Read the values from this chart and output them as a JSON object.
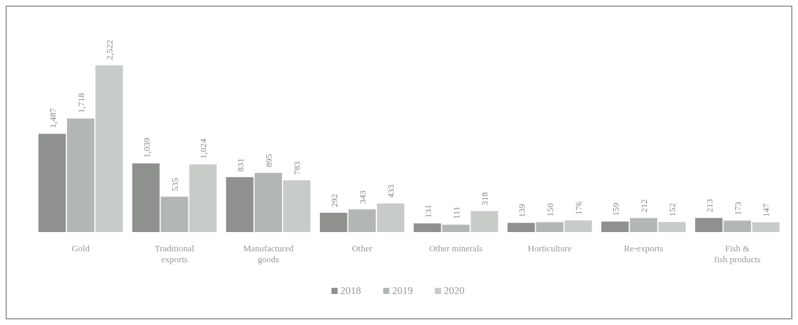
{
  "chart_data": {
    "type": "bar",
    "categories": [
      "Gold",
      "Traditional exports",
      "Manufactured goods",
      "Other",
      "Other minerals",
      "Horticulture",
      "Re-exports",
      "Fish & fish products"
    ],
    "series": [
      {
        "name": "2018",
        "color": "#8e918d",
        "values": [
          1487,
          1039,
          831,
          292,
          131,
          139,
          159,
          213
        ],
        "value_labels": [
          "1,487",
          "1,039",
          "831",
          "292",
          "131",
          "139",
          "159",
          "213"
        ]
      },
      {
        "name": "2019",
        "color": "#b3b7b3",
        "values": [
          1718,
          535,
          895,
          343,
          111,
          150,
          212,
          173
        ],
        "value_labels": [
          "1,718",
          "535",
          "895",
          "343",
          "111",
          "150",
          "212",
          "173"
        ]
      },
      {
        "name": "2020",
        "color": "#c7ccc8",
        "values": [
          2522,
          1024,
          783,
          433,
          318,
          176,
          152,
          147
        ],
        "value_labels": [
          "2,522",
          "1,024",
          "783",
          "433",
          "318",
          "176",
          "152",
          "147"
        ]
      }
    ],
    "legend": "bottom"
  }
}
